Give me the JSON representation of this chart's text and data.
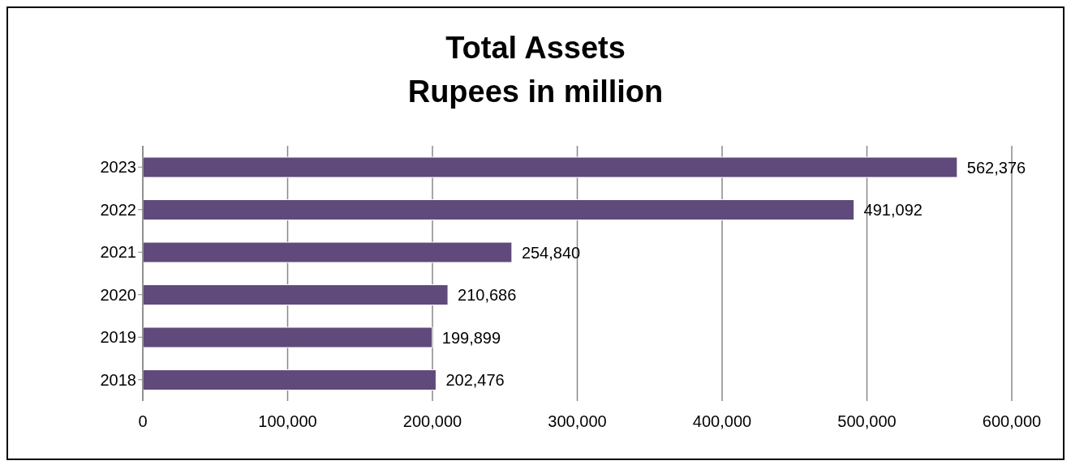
{
  "chart_data": {
    "type": "bar",
    "orientation": "horizontal",
    "title": "Total Assets",
    "subtitle": "Rupees in million",
    "categories": [
      "2023",
      "2022",
      "2021",
      "2020",
      "2019",
      "2018"
    ],
    "values": [
      562376,
      491092,
      254840,
      210686,
      199899,
      202476
    ],
    "value_labels": [
      "562,376",
      "491,092",
      "254,840",
      "210,686",
      "199,899",
      "202,476"
    ],
    "color": "#604a7b",
    "xlim": [
      0,
      600000
    ],
    "xticks": [
      0,
      {
        "value": 100000,
        "label": "100,000"
      },
      {
        "value": 200000,
        "label": "200,000"
      },
      {
        "value": 300000,
        "label": "300,000"
      },
      {
        "value": 400000,
        "label": "400,000"
      },
      {
        "value": 500000,
        "label": "500,000"
      },
      {
        "value": 600000,
        "label": "600,000"
      }
    ],
    "grid": "x"
  }
}
